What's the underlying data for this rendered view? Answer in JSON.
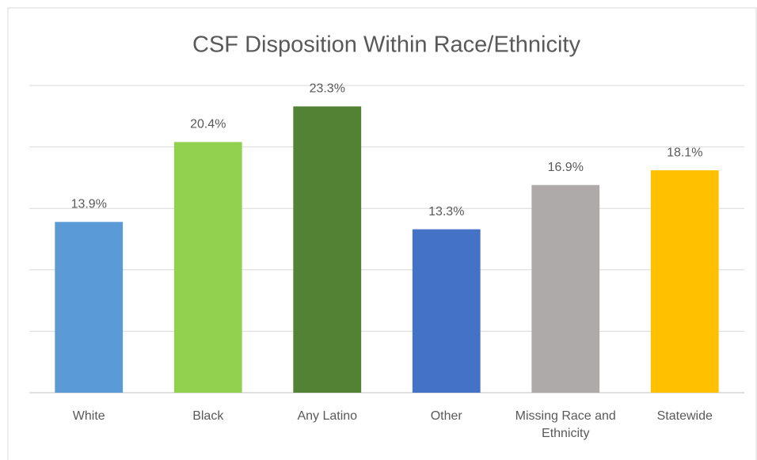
{
  "chart_data": {
    "type": "bar",
    "title": "CSF Disposition Within Race/Ethnicity",
    "categories": [
      "White",
      "Black",
      "Any Latino",
      "Other",
      "Missing Race and Ethnicity",
      "Statewide"
    ],
    "values": [
      13.9,
      20.4,
      23.3,
      13.3,
      16.9,
      18.1
    ],
    "value_labels": [
      "13.9%",
      "20.4%",
      "23.3%",
      "13.3%",
      "16.9%",
      "18.1%"
    ],
    "colors": [
      "#5b9bd5",
      "#92d050",
      "#548235",
      "#4472c4",
      "#aeaaaa",
      "#ffc000"
    ],
    "ylim": [
      0,
      25
    ],
    "yticks": [
      0,
      5,
      10,
      15,
      20,
      25
    ],
    "grid": true
  }
}
